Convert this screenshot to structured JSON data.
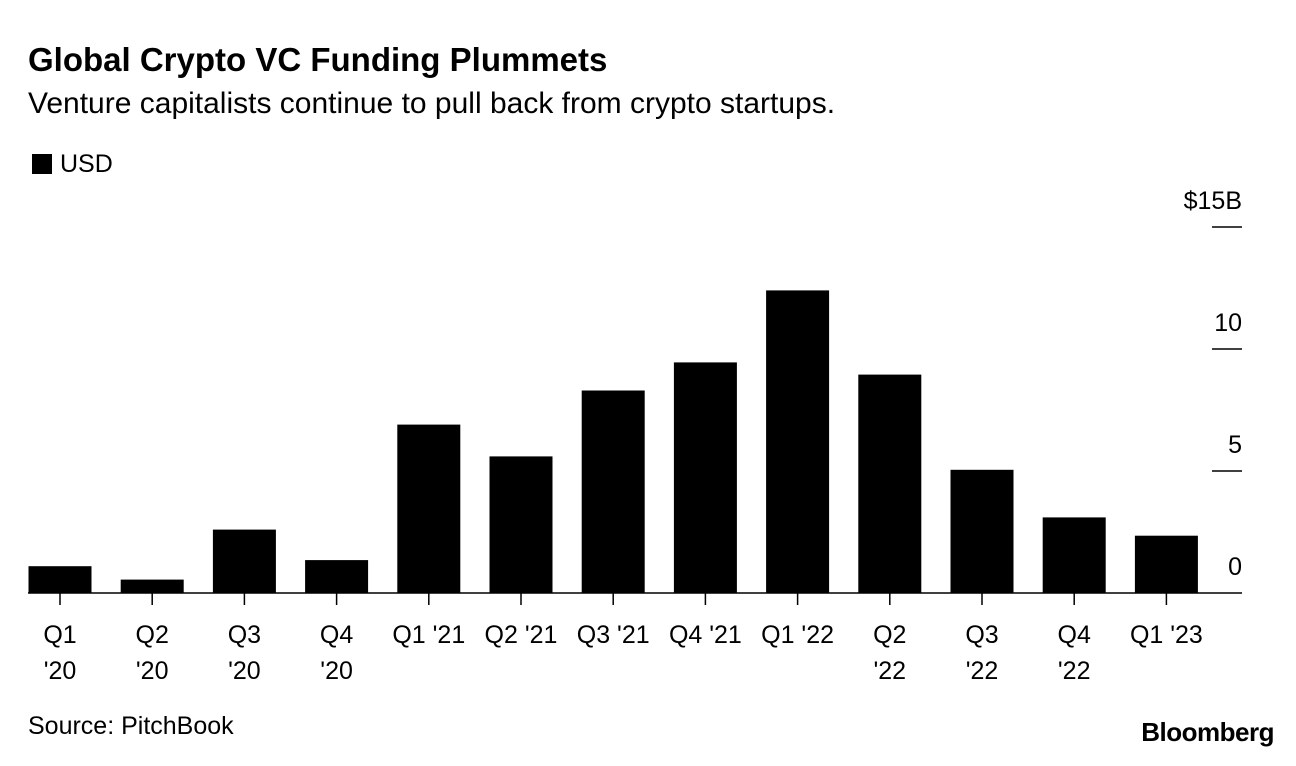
{
  "header": {
    "title": "Global Crypto VC Funding Plummets",
    "subtitle": "Venture capitalists continue to pull back from crypto startups."
  },
  "legend": {
    "label": "USD",
    "placement": "top-left"
  },
  "footer": {
    "source": "Source: PitchBook",
    "brand": "Bloomberg"
  },
  "colors": {
    "bar": "#000000",
    "text": "#000000",
    "background": "#ffffff"
  },
  "chart_data": {
    "type": "bar",
    "title": "Global Crypto VC Funding Plummets",
    "subtitle": "Venture capitalists continue to pull back from crypto startups.",
    "xlabel": "",
    "ylabel": "",
    "categories": [
      [
        "Q1",
        "'20"
      ],
      [
        "Q2",
        "'20"
      ],
      [
        "Q3",
        "'20"
      ],
      [
        "Q4",
        "'20"
      ],
      [
        "Q1 '21"
      ],
      [
        "Q2 '21"
      ],
      [
        "Q3 '21"
      ],
      [
        "Q4 '21"
      ],
      [
        "Q1 '22"
      ],
      [
        "Q2",
        "'22"
      ],
      [
        "Q3",
        "'22"
      ],
      [
        "Q4",
        "'22"
      ],
      [
        "Q1 '23"
      ]
    ],
    "series": [
      {
        "name": "USD",
        "values": [
          1.1,
          0.55,
          2.6,
          1.35,
          6.9,
          5.6,
          8.3,
          9.45,
          12.4,
          8.95,
          5.05,
          3.1,
          2.35
        ]
      }
    ],
    "ylim": [
      0,
      15
    ],
    "yticks": [
      0,
      5,
      10,
      15
    ],
    "ytick_labels": [
      "0",
      "5",
      "10",
      "$15B"
    ],
    "y_axis_side": "right",
    "grid": false,
    "legend": "top-left"
  }
}
